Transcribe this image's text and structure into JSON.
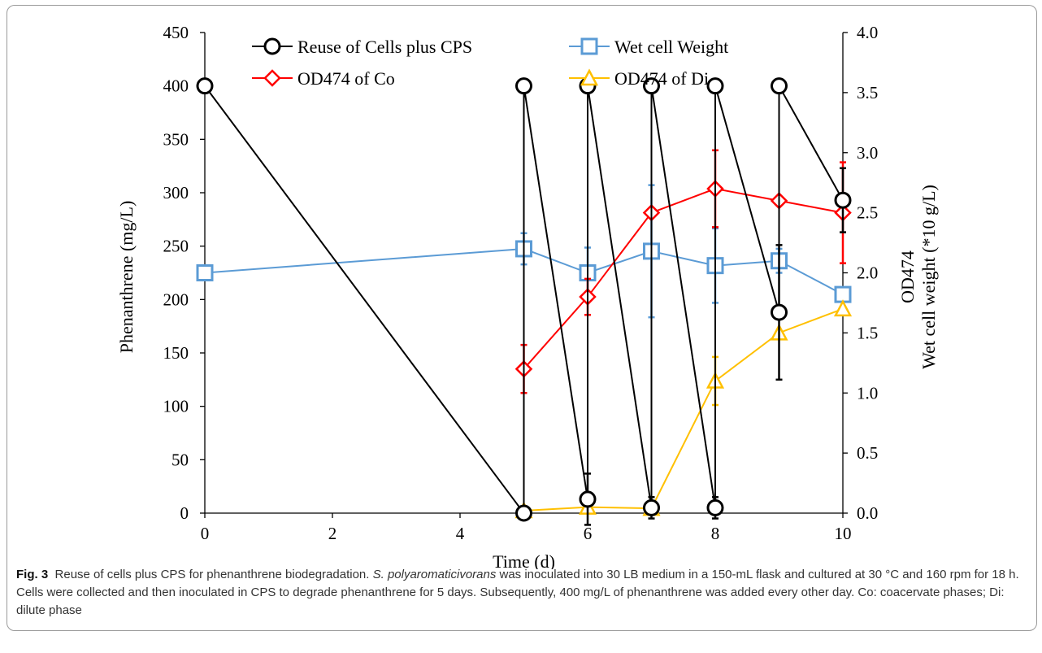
{
  "chart_data": {
    "type": "line",
    "xlabel": "Time (d)",
    "ylabel": "Phenanthrene  (mg/L)",
    "ylabel2_lines": [
      "OD474",
      "Wet cell weight (*10 g/L)"
    ],
    "xlim": [
      0,
      10
    ],
    "xticks": [
      "0",
      "2",
      "4",
      "6",
      "8",
      "10"
    ],
    "ylim": [
      0,
      450
    ],
    "yticks": [
      "0",
      "50",
      "100",
      "150",
      "200",
      "250",
      "300",
      "350",
      "400",
      "450"
    ],
    "y2lim": [
      0,
      4.0
    ],
    "y2ticks": [
      "0.0",
      "0.5",
      "1.0",
      "1.5",
      "2.0",
      "2.5",
      "3.0",
      "3.5",
      "4.0"
    ],
    "legend_position": "top",
    "series": [
      {
        "name": "Reuse of Cells plus CPS",
        "axis": "left",
        "color": "#000000",
        "marker": "circle",
        "x": [
          0,
          5,
          5,
          6,
          6,
          7,
          7,
          8,
          8,
          9,
          9,
          10
        ],
        "y": [
          400,
          0,
          400,
          13,
          400,
          5,
          400,
          5,
          400,
          188,
          400,
          293
        ],
        "err": [
          0,
          0,
          0,
          24,
          0,
          10,
          0,
          10,
          0,
          63,
          0,
          30
        ]
      },
      {
        "name": "Wet cell Weight",
        "axis": "right",
        "color": "#5b9bd5",
        "marker": "square",
        "x": [
          0,
          5,
          6,
          7,
          8,
          9,
          10
        ],
        "y": [
          2.0,
          2.2,
          2.0,
          2.18,
          2.06,
          2.1,
          1.82
        ],
        "err": [
          0,
          0.13,
          0.21,
          0.55,
          0.31,
          0.1,
          0
        ]
      },
      {
        "name": "OD474 of Co",
        "axis": "right",
        "color": "#ff0000",
        "marker": "diamond",
        "x": [
          5,
          6,
          7,
          8,
          9,
          10
        ],
        "y": [
          1.2,
          1.8,
          2.5,
          2.7,
          2.6,
          2.5
        ],
        "err": [
          0.2,
          0.15,
          0,
          0.32,
          0,
          0.42
        ]
      },
      {
        "name": "OD474 of Di",
        "axis": "right",
        "color": "#ffc000",
        "marker": "triangle",
        "x": [
          5,
          6,
          7,
          8,
          9,
          10
        ],
        "y": [
          0.02,
          0.05,
          0.04,
          1.1,
          1.5,
          1.7
        ],
        "err": [
          0,
          0,
          0,
          0.2,
          0,
          0
        ]
      }
    ]
  },
  "caption": {
    "label": "Fig. 3",
    "text_before_italic": "Reuse of cells plus CPS for phenanthrene biodegradation. ",
    "italic": "S. polyaromaticivorans",
    "text_after_italic": " was inoculated into 30 LB medium in a 150-mL flask and cultured at 30 °C and 160 rpm for 18 h. Cells were collected and then inoculated in CPS to degrade phenanthrene for 5 days. Subsequently, 400 mg/L of phenanthrene was added every other day. Co: coacervate phases; Di: dilute phase"
  }
}
